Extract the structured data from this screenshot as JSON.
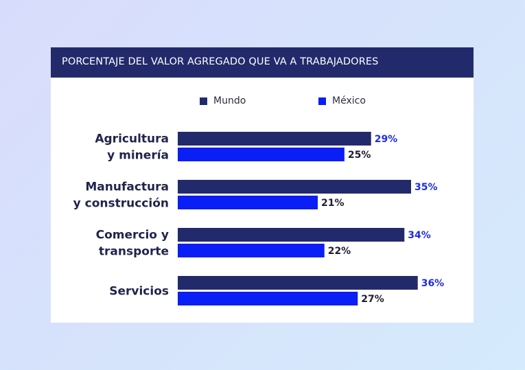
{
  "colors": {
    "mundo": "#232a6b",
    "mexico": "#0a1ef5",
    "mundo_label": "#1e2de0",
    "mexico_label": "#1c1f2e"
  },
  "header": {
    "title": "PORCENTAJE DEL VALOR AGREGADO QUE VA A TRABAJADORES"
  },
  "legend": {
    "items": [
      {
        "label": "Mundo"
      },
      {
        "label": "México"
      }
    ]
  },
  "chart_data": {
    "type": "bar",
    "orientation": "horizontal",
    "title": "PORCENTAJE DEL VALOR AGREGADO QUE VA A TRABAJADORES",
    "xlabel": "",
    "ylabel": "",
    "xlim": [
      0,
      40
    ],
    "grid": false,
    "legend_position": "top",
    "categories": [
      [
        "Agricultura",
        "y minería"
      ],
      [
        "Manufactura",
        "y construcción"
      ],
      [
        "Comercio y",
        "transporte"
      ],
      [
        "Servicios"
      ]
    ],
    "series": [
      {
        "name": "Mundo",
        "values": [
          29,
          35,
          34,
          36
        ],
        "labels": [
          "29%",
          "35%",
          "34%",
          "36%"
        ]
      },
      {
        "name": "México",
        "values": [
          25,
          21,
          22,
          27
        ],
        "labels": [
          "25%",
          "21%",
          "22%",
          "27%"
        ]
      }
    ]
  }
}
